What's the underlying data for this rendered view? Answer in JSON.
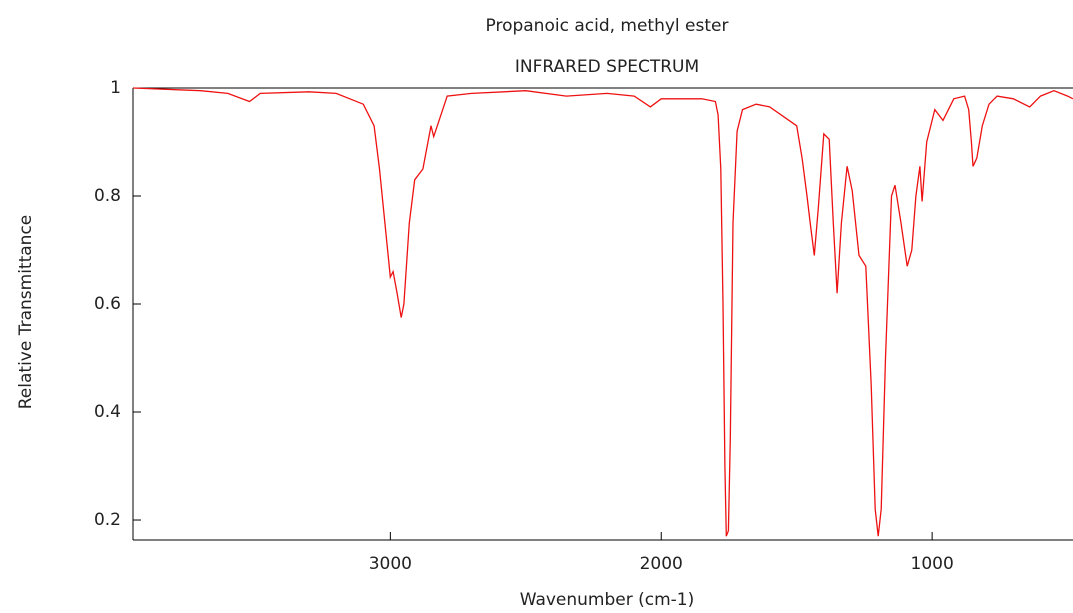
{
  "chart_data": {
    "type": "line",
    "title": "Propanoic acid, methyl ester",
    "subtitle": "INFRARED SPECTRUM",
    "x_label": "Wavenumber (cm-1)",
    "y_label": "Relative Transmittance",
    "xlim": [
      3950,
      480
    ],
    "ylim": [
      0.163,
      1
    ],
    "xticks": [
      3000,
      2000,
      1000
    ],
    "yticks": [
      0.2,
      0.4,
      0.6,
      0.8,
      1
    ],
    "series": [
      {
        "color": "#ee1111",
        "x": [
          3950,
          3700,
          3600,
          3520,
          3480,
          3300,
          3200,
          3100,
          3060,
          3040,
          3020,
          3000,
          2990,
          2975,
          2960,
          2950,
          2930,
          2910,
          2880,
          2850,
          2840,
          2820,
          2790,
          2700,
          2500,
          2350,
          2200,
          2100,
          2040,
          2000,
          1850,
          1800,
          1790,
          1780,
          1772,
          1765,
          1760,
          1752,
          1745,
          1735,
          1720,
          1700,
          1650,
          1600,
          1500,
          1480,
          1462,
          1450,
          1435,
          1420,
          1400,
          1380,
          1365,
          1351,
          1335,
          1314,
          1295,
          1270,
          1245,
          1225,
          1210,
          1199,
          1188,
          1172,
          1150,
          1137,
          1115,
          1092,
          1075,
          1060,
          1045,
          1037,
          1020,
          990,
          960,
          920,
          880,
          865,
          855,
          849,
          835,
          815,
          790,
          760,
          700,
          640,
          600,
          550,
          500,
          480
        ],
        "values": [
          1.0,
          0.995,
          0.99,
          0.975,
          0.99,
          0.993,
          0.99,
          0.97,
          0.93,
          0.85,
          0.75,
          0.65,
          0.66,
          0.62,
          0.575,
          0.6,
          0.75,
          0.83,
          0.85,
          0.93,
          0.91,
          0.94,
          0.985,
          0.99,
          0.995,
          0.985,
          0.99,
          0.985,
          0.965,
          0.98,
          0.98,
          0.975,
          0.95,
          0.85,
          0.6,
          0.3,
          0.17,
          0.18,
          0.35,
          0.75,
          0.92,
          0.96,
          0.97,
          0.965,
          0.93,
          0.87,
          0.8,
          0.75,
          0.69,
          0.78,
          0.915,
          0.905,
          0.75,
          0.62,
          0.75,
          0.855,
          0.81,
          0.69,
          0.67,
          0.45,
          0.22,
          0.17,
          0.22,
          0.5,
          0.8,
          0.82,
          0.75,
          0.67,
          0.7,
          0.8,
          0.855,
          0.79,
          0.9,
          0.96,
          0.94,
          0.98,
          0.985,
          0.96,
          0.9,
          0.855,
          0.87,
          0.93,
          0.97,
          0.985,
          0.98,
          0.965,
          0.985,
          0.995,
          0.985,
          0.98
        ]
      }
    ]
  }
}
